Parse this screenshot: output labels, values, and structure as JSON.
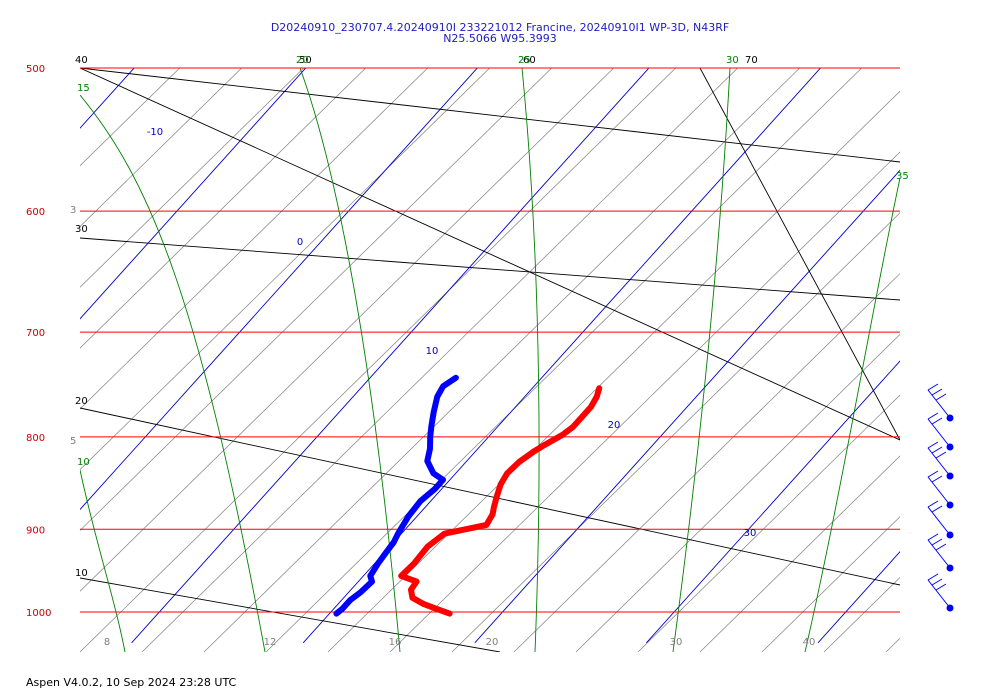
{
  "title_line1": "D20240910_230707.4.20240910I 233221012 Francine, 20240910I1 WP-3D, N43RF",
  "title_line2": "N25.5066 W95.3993",
  "footer": "Aspen V4.0.2, 10 Sep 2024  23:28 UTC",
  "chart_data": {
    "type": "line",
    "subtype": "skew-T log-p thermodynamic diagram",
    "pressure_axis": {
      "ticks": [
        500,
        600,
        700,
        800,
        900,
        1000
      ],
      "range": [
        500,
        1000
      ],
      "scale": "log"
    },
    "temperature_axis": {
      "ticks": [
        8,
        12,
        16,
        20,
        30,
        40
      ],
      "range": [
        8,
        40
      ]
    },
    "isotherm_labels": [
      {
        "value": "-10",
        "t": -10,
        "p": 540
      },
      {
        "value": "0",
        "t": 0,
        "p": 630
      },
      {
        "value": "10",
        "t": 10,
        "p": 740
      },
      {
        "value": "20",
        "t": 20,
        "p": 810
      },
      {
        "value": "30",
        "t": 30,
        "p": 900
      }
    ],
    "theta_labels": [
      "40",
      "30",
      "20",
      "10"
    ],
    "theta_top_labels": [
      "50",
      "60",
      "70"
    ],
    "moist_adiabat_labels": [
      "15",
      "20",
      "25",
      "30",
      "35",
      "10"
    ],
    "mixing_ratio_labels": [
      "3",
      "5"
    ],
    "colors": {
      "isobar": "#ff0000",
      "isotherm": "#0000cc",
      "dry_adiabat": "#000000",
      "moist_adiabat": "#008000",
      "mixing_ratio": "#808080",
      "temperature": "#ff0000",
      "dewpoint": "#0000ff",
      "pressure_labels": "#cc0000",
      "title": "#2020c0"
    },
    "series": [
      {
        "name": "temperature",
        "points": [
          {
            "p": 1002,
            "t": 27.0
          },
          {
            "p": 996,
            "t": 26.0
          },
          {
            "p": 990,
            "t": 25.0
          },
          {
            "p": 982,
            "t": 24.0
          },
          {
            "p": 972,
            "t": 23.5
          },
          {
            "p": 962,
            "t": 23.4
          },
          {
            "p": 955,
            "t": 22.2
          },
          {
            "p": 940,
            "t": 22.3
          },
          {
            "p": 920,
            "t": 22.2
          },
          {
            "p": 905,
            "t": 22.5
          },
          {
            "p": 900,
            "t": 23.5
          },
          {
            "p": 895,
            "t": 24.5
          },
          {
            "p": 883,
            "t": 24.3
          },
          {
            "p": 875,
            "t": 24.0
          },
          {
            "p": 863,
            "t": 23.6
          },
          {
            "p": 850,
            "t": 23.2
          },
          {
            "p": 838,
            "t": 23.0
          },
          {
            "p": 826,
            "t": 23.1
          },
          {
            "p": 815,
            "t": 23.4
          },
          {
            "p": 808,
            "t": 23.7
          },
          {
            "p": 798,
            "t": 24.2
          },
          {
            "p": 790,
            "t": 24.4
          },
          {
            "p": 780,
            "t": 24.4
          },
          {
            "p": 770,
            "t": 24.4
          },
          {
            "p": 760,
            "t": 24.2
          },
          {
            "p": 752,
            "t": 23.9
          }
        ]
      },
      {
        "name": "dewpoint",
        "points": [
          {
            "p": 1002,
            "t": 20.4
          },
          {
            "p": 996,
            "t": 20.5
          },
          {
            "p": 985,
            "t": 20.5
          },
          {
            "p": 975,
            "t": 20.7
          },
          {
            "p": 962,
            "t": 20.8
          },
          {
            "p": 955,
            "t": 20.4
          },
          {
            "p": 940,
            "t": 20.2
          },
          {
            "p": 928,
            "t": 20.1
          },
          {
            "p": 915,
            "t": 20.0
          },
          {
            "p": 905,
            "t": 19.8
          },
          {
            "p": 885,
            "t": 19.5
          },
          {
            "p": 868,
            "t": 19.4
          },
          {
            "p": 855,
            "t": 19.6
          },
          {
            "p": 845,
            "t": 19.6
          },
          {
            "p": 838,
            "t": 18.7
          },
          {
            "p": 825,
            "t": 17.7
          },
          {
            "p": 812,
            "t": 17.2
          },
          {
            "p": 800,
            "t": 16.6
          },
          {
            "p": 789,
            "t": 16.1
          },
          {
            "p": 775,
            "t": 15.5
          },
          {
            "p": 760,
            "t": 14.9
          },
          {
            "p": 750,
            "t": 14.7
          },
          {
            "p": 742,
            "t": 15.0
          }
        ]
      }
    ]
  }
}
